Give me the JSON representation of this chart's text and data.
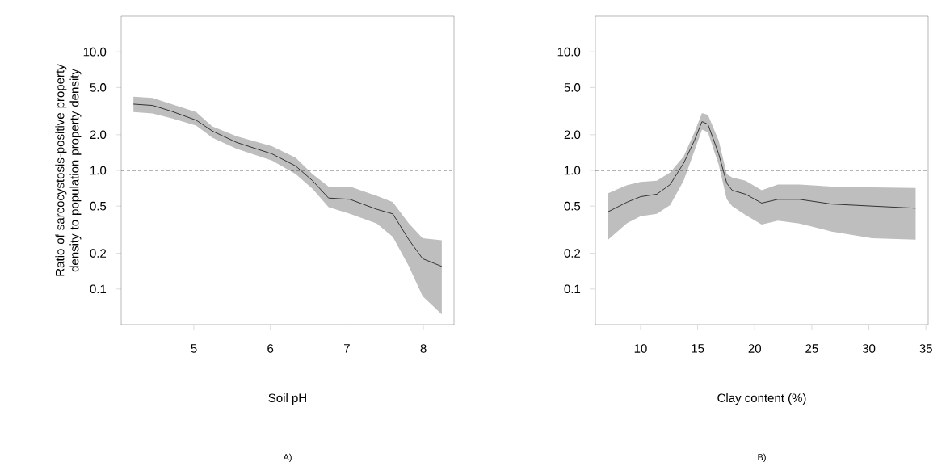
{
  "chart_data": [
    {
      "type": "line",
      "xlabel": "Soil pH",
      "ylabel": "Ratio of sarcocystosis-positive property density to population property density",
      "annotations": [
        "A)"
      ],
      "log": "y",
      "x": [
        4.21,
        4.46,
        4.71,
        5.03,
        5.24,
        5.56,
        6.02,
        6.33,
        6.55,
        6.76,
        7.04,
        7.39,
        7.6,
        7.81,
        7.99,
        8.24
      ],
      "series": [
        {
          "color": "#333333",
          "values": [
            3.62,
            3.53,
            3.15,
            2.65,
            2.15,
            1.72,
            1.38,
            1.09,
            0.82,
            0.585,
            0.57,
            0.47,
            0.43,
            0.26,
            0.18,
            0.155
          ],
          "upper": [
            4.19,
            4.08,
            3.62,
            3.1,
            2.35,
            1.94,
            1.6,
            1.28,
            0.93,
            0.73,
            0.73,
            0.61,
            0.54,
            0.356,
            0.268,
            0.257
          ],
          "lower": [
            3.1,
            3.02,
            2.75,
            2.39,
            1.89,
            1.52,
            1.21,
            0.93,
            0.7,
            0.49,
            0.43,
            0.356,
            0.275,
            0.155,
            0.087,
            0.061
          ]
        }
      ],
      "xlim": [
        4.05,
        8.4
      ],
      "ylim": [
        0.05,
        20
      ],
      "xticks": [
        5,
        6,
        7,
        8
      ],
      "yticks": [
        {
          "value": 0.1,
          "label": "0.1"
        },
        {
          "value": 0.2,
          "label": "0.2"
        },
        {
          "value": 0.5,
          "label": "0.5"
        },
        {
          "value": 1,
          "label": "1.0"
        },
        {
          "value": 2,
          "label": "2.0"
        },
        {
          "value": 5,
          "label": "5.0"
        },
        {
          "value": 10,
          "label": "10.0"
        }
      ],
      "ref_lines": [
        {
          "axis": "y",
          "value": 1,
          "line_style": "dashed",
          "color": "#000000"
        }
      ]
    },
    {
      "type": "line",
      "xlabel": "Clay content (%)",
      "annotations": [
        "B)"
      ],
      "log": "y",
      "x": [
        7.12,
        8.82,
        10,
        11.42,
        12.59,
        13.77,
        14.72,
        15.38,
        15.9,
        16.84,
        17.55,
        18.02,
        19.2,
        20.61,
        22.03,
        23.92,
        26.75,
        30.28,
        34.1
      ],
      "series": [
        {
          "color": "#333333",
          "values": [
            0.446,
            0.54,
            0.6,
            0.63,
            0.76,
            1.15,
            1.79,
            2.58,
            2.45,
            1.38,
            0.78,
            0.68,
            0.63,
            0.53,
            0.57,
            0.57,
            0.52,
            0.5,
            0.48
          ],
          "upper": [
            0.64,
            0.75,
            0.8,
            0.82,
            0.96,
            1.31,
            2.1,
            3.05,
            2.94,
            1.79,
            0.93,
            0.87,
            0.82,
            0.68,
            0.76,
            0.76,
            0.73,
            0.72,
            0.71
          ],
          "lower": [
            0.258,
            0.36,
            0.41,
            0.43,
            0.51,
            0.82,
            1.46,
            2.21,
            2.1,
            1.12,
            0.57,
            0.5,
            0.42,
            0.35,
            0.376,
            0.356,
            0.305,
            0.268,
            0.26
          ]
        }
      ],
      "xlim": [
        6.04,
        35.2
      ],
      "ylim": [
        0.05,
        20
      ],
      "xticks": [
        10,
        15,
        20,
        25,
        30,
        35
      ],
      "yticks": [
        {
          "value": 0.1,
          "label": "0.1"
        },
        {
          "value": 0.2,
          "label": "0.2"
        },
        {
          "value": 0.5,
          "label": "0.5"
        },
        {
          "value": 1,
          "label": "1.0"
        },
        {
          "value": 2,
          "label": "2.0"
        },
        {
          "value": 5,
          "label": "5.0"
        },
        {
          "value": 10,
          "label": "10.0"
        }
      ],
      "ref_lines": [
        {
          "axis": "y",
          "value": 1,
          "line_style": "dashed",
          "color": "#000000"
        }
      ]
    }
  ]
}
